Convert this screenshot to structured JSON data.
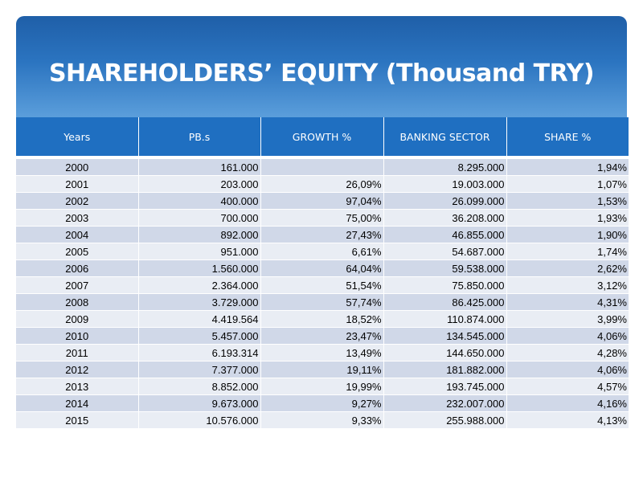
{
  "title": "SHAREHOLDERS’ EQUITY  (Thousand TRY)",
  "table": {
    "headers": [
      "Years",
      "PB.s",
      "GROWTH %",
      "BANKING SECTOR",
      "SHARE %"
    ],
    "rows": [
      [
        "2000",
        "161.000",
        "",
        "8.295.000",
        "1,94%"
      ],
      [
        "2001",
        "203.000",
        "26,09%",
        "19.003.000",
        "1,07%"
      ],
      [
        "2002",
        "400.000",
        "97,04%",
        "26.099.000",
        "1,53%"
      ],
      [
        "2003",
        "700.000",
        "75,00%",
        "36.208.000",
        "1,93%"
      ],
      [
        "2004",
        "892.000",
        "27,43%",
        "46.855.000",
        "1,90%"
      ],
      [
        "2005",
        "951.000",
        "6,61%",
        "54.687.000",
        "1,74%"
      ],
      [
        "2006",
        "1.560.000",
        "64,04%",
        "59.538.000",
        "2,62%"
      ],
      [
        "2007",
        "2.364.000",
        "51,54%",
        "75.850.000",
        "3,12%"
      ],
      [
        "2008",
        "3.729.000",
        "57,74%",
        "86.425.000",
        "4,31%"
      ],
      [
        "2009",
        "4.419.564",
        "18,52%",
        "110.874.000",
        "3,99%"
      ],
      [
        "2010",
        "5.457.000",
        "23,47%",
        "134.545.000",
        "4,06%"
      ],
      [
        "2011",
        "6.193.314",
        "13,49%",
        "144.650.000",
        "4,28%"
      ],
      [
        "2012",
        "7.377.000",
        "19,11%",
        "181.882.000",
        "4,06%"
      ],
      [
        "2013",
        "8.852.000",
        "19,99%",
        "193.745.000",
        "4,57%"
      ],
      [
        "2014",
        "9.673.000",
        "9,27%",
        "232.007.000",
        "4,16%"
      ],
      [
        "2015",
        "10.576.000",
        "9,33%",
        "255.988.000",
        "4,13%"
      ]
    ]
  },
  "colors": {
    "banner_top": "#1f5fa8",
    "banner_bottom": "#5b9edb",
    "header_bg": "#1f6fc1",
    "row_odd": "#d0d8e8",
    "row_even": "#e9edf4"
  }
}
